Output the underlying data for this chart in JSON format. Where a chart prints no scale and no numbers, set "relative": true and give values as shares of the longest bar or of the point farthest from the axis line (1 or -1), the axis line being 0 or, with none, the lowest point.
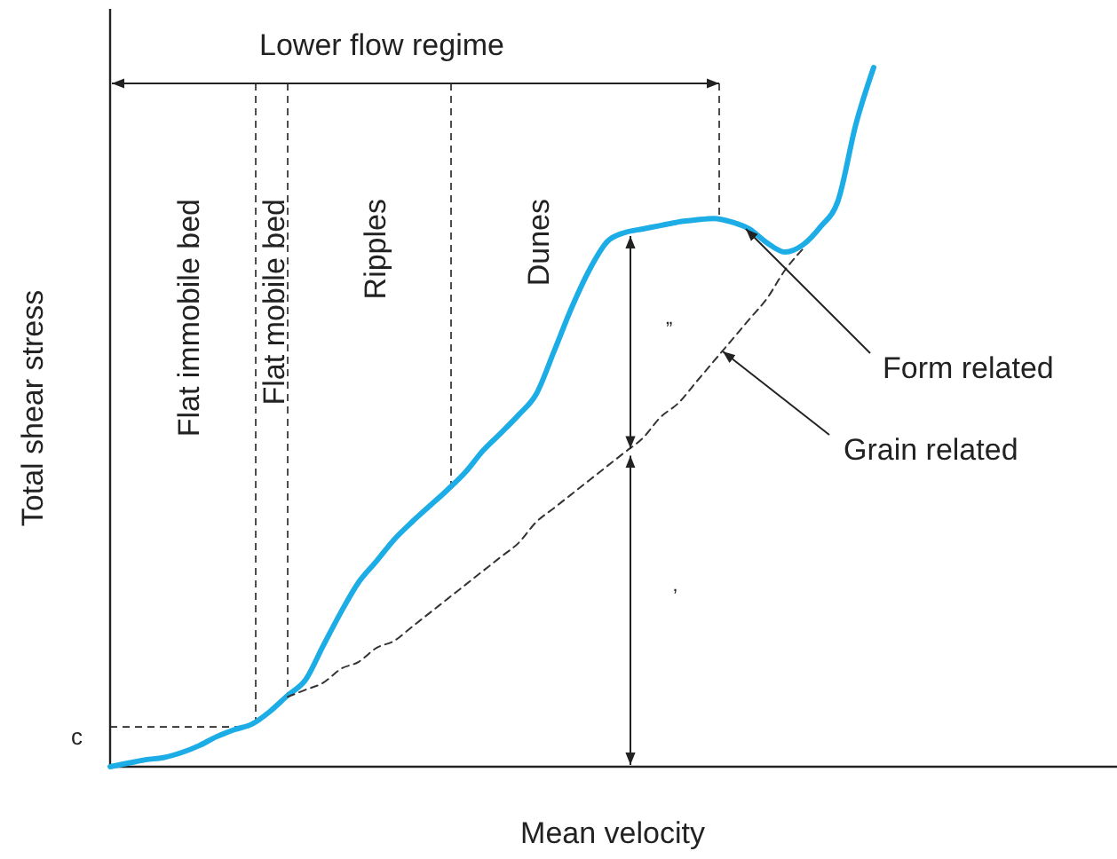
{
  "chart_data": {
    "type": "line",
    "relative": true,
    "xlabel": "Mean velocity",
    "ylabel": "Total shear stress",
    "categories": [
      null,
      null,
      null,
      null,
      null,
      null,
      null,
      null,
      null,
      null,
      null,
      null,
      null,
      null,
      null,
      null,
      null,
      null,
      null,
      null,
      null,
      null,
      null,
      null,
      null,
      null,
      null,
      null,
      null,
      null,
      null,
      null,
      null,
      null,
      null,
      null,
      null,
      null,
      null,
      null,
      null,
      null,
      null,
      null,
      null,
      null,
      null,
      null,
      null,
      null,
      null,
      null,
      null,
      null,
      null,
      null,
      null
    ],
    "series": [
      {
        "color": "#1cace6",
        "line_style": "solid",
        "values": [
          0,
          0.005,
          0.01,
          0.013,
          0.02,
          0.03,
          0.043,
          0.053,
          0.061,
          0.079,
          0.102,
          0.124,
          0.173,
          0.221,
          0.264,
          0.294,
          0.325,
          0.35,
          0.373,
          0.396,
          0.421,
          0.452,
          0.477,
          0.503,
          0.533,
          0.594,
          0.657,
          0.711,
          0.751,
          0.764,
          0.769,
          0.774,
          0.779,
          0.782,
          0.784,
          0.779,
          0.769,
          0.749,
          0.736,
          0.746,
          0.772,
          0.81,
          0.919,
          1,
          null,
          null,
          null,
          null,
          null,
          null,
          null,
          null,
          null,
          null,
          null,
          null,
          null
        ]
      },
      {
        "color": "#333333",
        "line_style": "dashed",
        "values": [
          null,
          null,
          null,
          null,
          null,
          null,
          null,
          null,
          null,
          null,
          0.1,
          0.11,
          0.12,
          0.14,
          0.15,
          0.17,
          0.18,
          0.2,
          0.22,
          0.24,
          0.26,
          0.28,
          0.3,
          0.32,
          0.35,
          0.37,
          0.39,
          0.41,
          0.43,
          0.45,
          0.47,
          0.5,
          0.52,
          0.55,
          0.58,
          0.61,
          0.64,
          0.67,
          0.71,
          0.74,
          null,
          null,
          null,
          null,
          null,
          null,
          null,
          null,
          null,
          null,
          null,
          null,
          null,
          null,
          null,
          null,
          null
        ]
      }
    ],
    "ref_lines": [
      {
        "axis": "y",
        "value": 0.057,
        "label": "c",
        "line_style": "dashed"
      }
    ],
    "annotations": [
      "Lower flow regime",
      "Flat immobile bed",
      "Flat mobile bed",
      "Ripples",
      "Dunes",
      "Form related",
      "Grain related",
      "”",
      "’"
    ]
  }
}
